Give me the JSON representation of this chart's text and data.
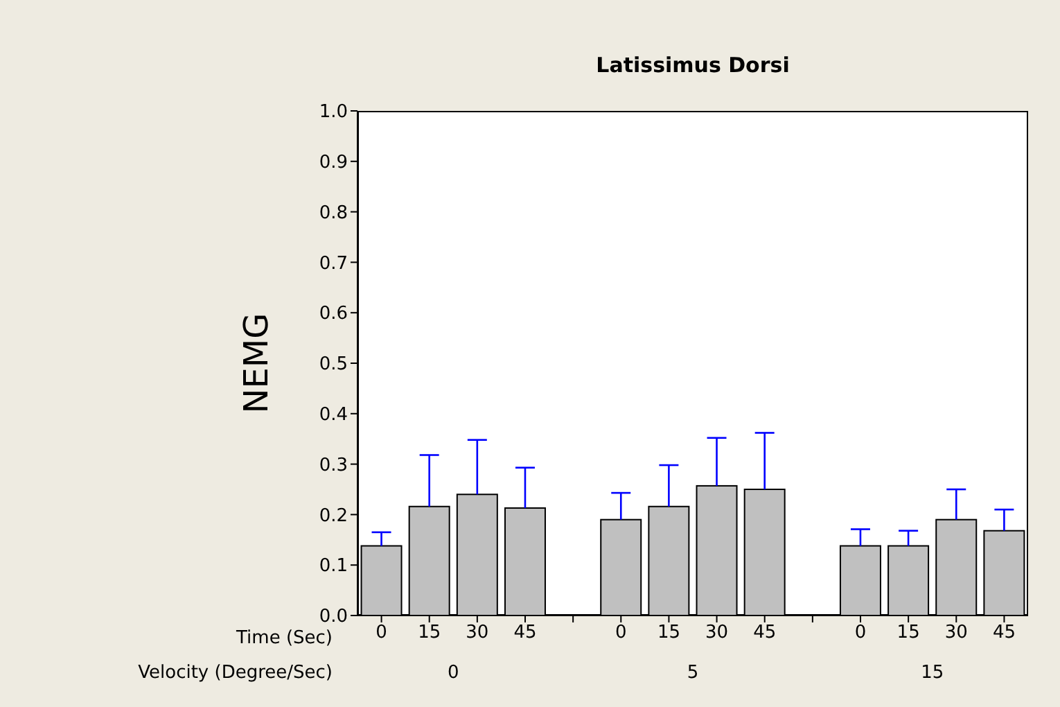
{
  "chart_data": {
    "type": "bar",
    "title": "Latissimus Dorsi",
    "ylabel": "NEMG",
    "categories": [
      "0",
      "15",
      "30",
      "45",
      null,
      "0",
      "15",
      "30",
      "45",
      null,
      "0",
      "15",
      "30",
      "45"
    ],
    "values": [
      0.138,
      0.216,
      0.24,
      0.213,
      null,
      0.19,
      0.216,
      0.257,
      0.25,
      null,
      0.138,
      0.138,
      0.19,
      0.168
    ],
    "errors": [
      [
        0.138,
        0.165
      ],
      [
        0.216,
        0.318
      ],
      [
        0.24,
        0.348
      ],
      [
        0.213,
        0.293
      ],
      null,
      [
        0.19,
        0.243
      ],
      [
        0.216,
        0.298
      ],
      [
        0.257,
        0.352
      ],
      [
        0.25,
        0.362
      ],
      null,
      [
        0.138,
        0.171
      ],
      [
        0.138,
        0.168
      ],
      [
        0.19,
        0.25
      ],
      [
        0.168,
        0.21
      ]
    ],
    "color": "#c0c0c0",
    "ylim": [
      0,
      1
    ],
    "yticks": [
      {
        "value": 0,
        "label": "0.0"
      },
      {
        "value": 0.1,
        "label": "0.1"
      },
      {
        "value": 0.2,
        "label": "0.2"
      },
      {
        "value": 0.3,
        "label": "0.3"
      },
      {
        "value": 0.4,
        "label": "0.4"
      },
      {
        "value": 0.5,
        "label": "0.5"
      },
      {
        "value": 0.6,
        "label": "0.6"
      },
      {
        "value": 0.7,
        "label": "0.7"
      },
      {
        "value": 0.8,
        "label": "0.8"
      },
      {
        "value": 0.9,
        "label": "0.9"
      },
      {
        "value": 1,
        "label": "1.0"
      }
    ],
    "annotations": [
      "Time (Sec)",
      "Velocity (Degree/Sec)",
      "0",
      "5",
      "15"
    ]
  }
}
